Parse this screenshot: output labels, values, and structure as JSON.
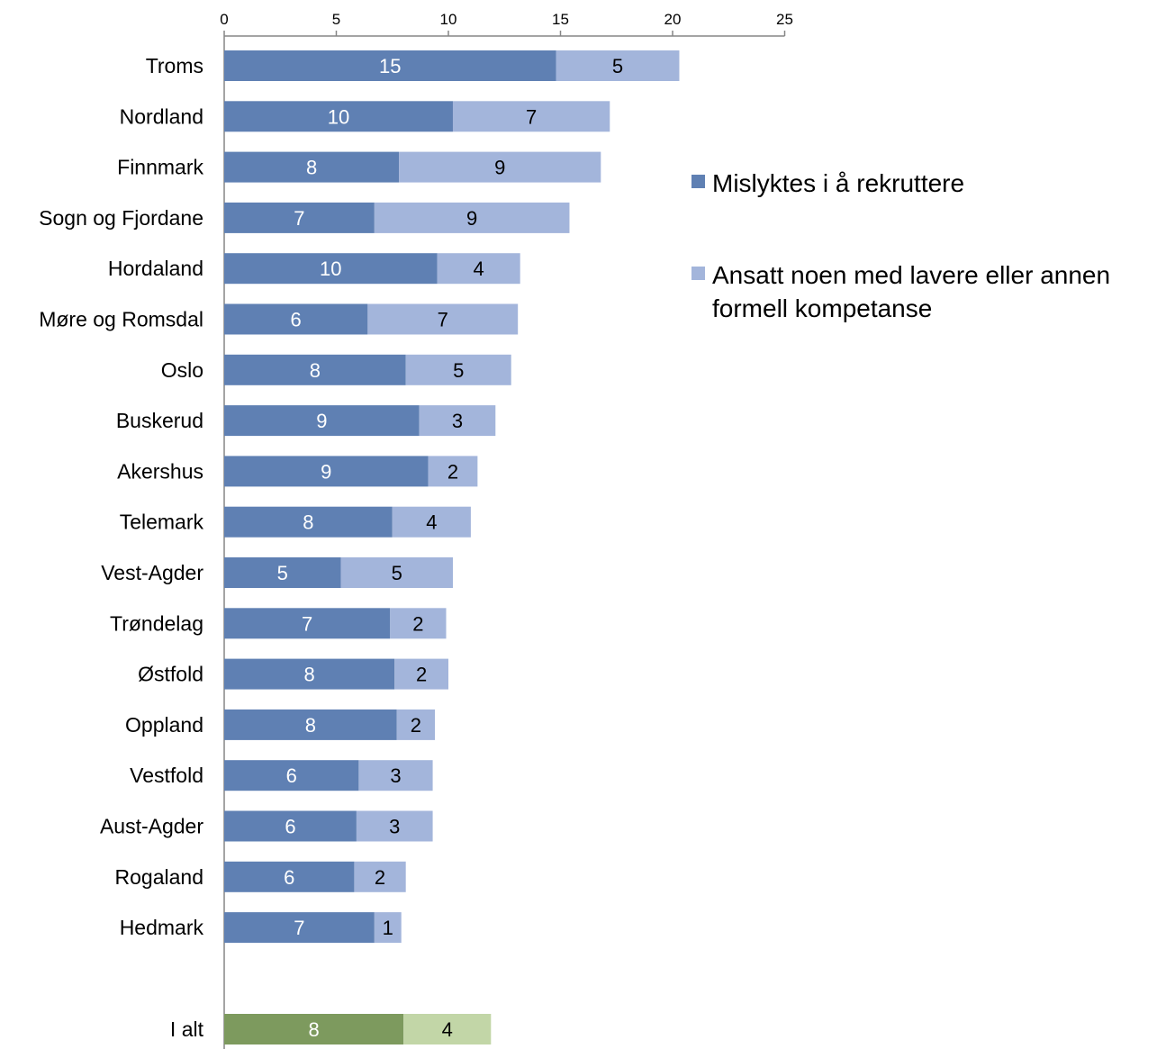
{
  "chart_data": {
    "type": "bar",
    "orientation": "horizontal",
    "stacked": true,
    "title": "",
    "xlabel": "",
    "ylabel": "",
    "xlim": [
      0,
      25
    ],
    "xticks": [
      0,
      5,
      10,
      15,
      20,
      25
    ],
    "x_axis_position": "top",
    "grid": false,
    "legend_position": "right",
    "categories": [
      "Troms",
      "Nordland",
      "Finnmark",
      "Sogn og Fjordane",
      "Hordaland",
      "Møre og Romsdal",
      "Oslo",
      "Buskerud",
      "Akershus",
      "Telemark",
      "Vest-Agder",
      "Trøndelag",
      "Østfold",
      "Oppland",
      "Vestfold",
      "Aust-Agder",
      "Rogaland",
      "Hedmark"
    ],
    "series": [
      {
        "name": "Mislyktes i å rekruttere",
        "color": "#5f80b3",
        "values": [
          14.8,
          10.2,
          7.8,
          6.7,
          9.5,
          6.4,
          8.1,
          8.7,
          9.1,
          7.5,
          5.2,
          7.4,
          7.6,
          7.7,
          6.0,
          5.9,
          5.8,
          6.7
        ],
        "labels": [
          "15",
          "10",
          "8",
          "7",
          "10",
          "6",
          "8",
          "9",
          "9",
          "8",
          "5",
          "7",
          "8",
          "8",
          "6",
          "6",
          "6",
          "7"
        ]
      },
      {
        "name": "Ansatt noen med lavere eller annen formell kompetanse",
        "color": "#a3b5db",
        "values": [
          5.5,
          7.0,
          9.0,
          8.7,
          3.7,
          6.7,
          4.7,
          3.4,
          2.2,
          3.5,
          5.0,
          2.5,
          2.4,
          1.7,
          3.3,
          3.4,
          2.3,
          1.2
        ],
        "labels": [
          "5",
          "7",
          "9",
          "9",
          "4",
          "7",
          "5",
          "3",
          "2",
          "4",
          "5",
          "2",
          "2",
          "2",
          "3",
          "3",
          "2",
          "1"
        ]
      }
    ],
    "total": {
      "category": "I alt",
      "values": [
        8.0,
        3.9
      ],
      "labels": [
        "8",
        "4"
      ],
      "colors": [
        "#7d9a5e",
        "#c2d6a7"
      ]
    },
    "legend": {
      "entries": [
        {
          "lines": [
            "Mislyktes i å rekruttere"
          ],
          "color": "#5f80b3"
        },
        {
          "lines": [
            "Ansatt noen med lavere eller annen",
            "formell kompetanse"
          ],
          "color": "#a3b5db"
        }
      ]
    },
    "label_colors": {
      "dark_segment": "#ffffff",
      "light_segment": "#000000"
    },
    "axis_color": "#868686"
  }
}
